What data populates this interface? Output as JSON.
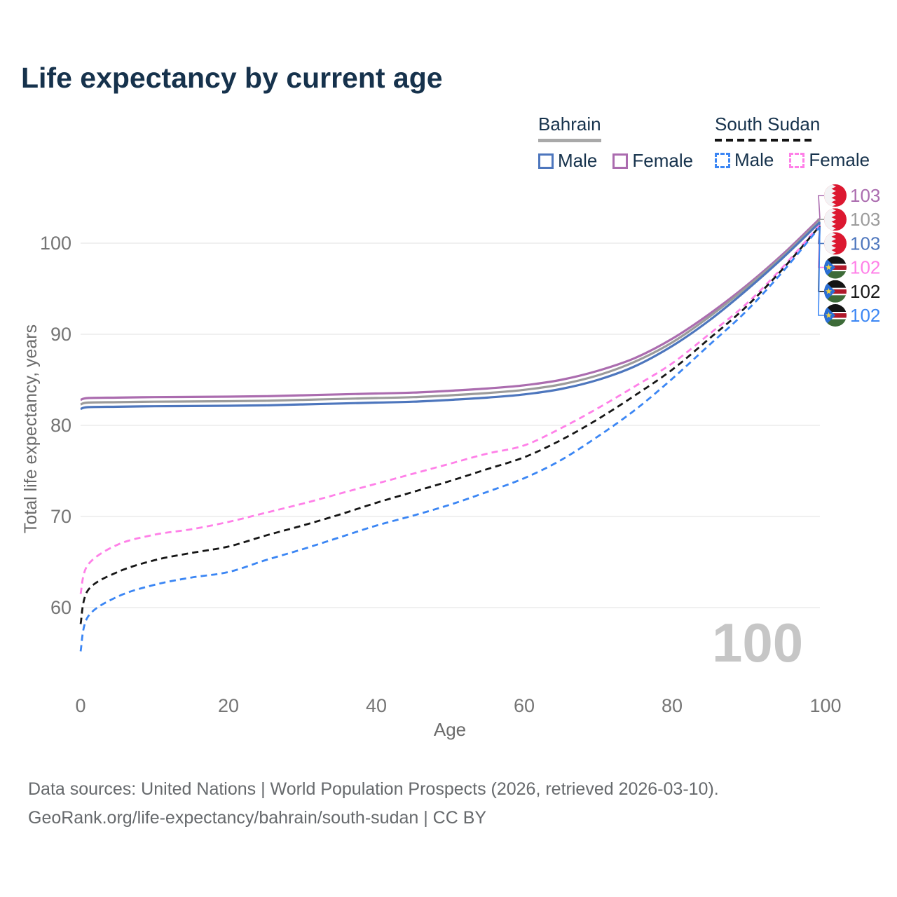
{
  "title": "Life expectancy by current age",
  "legend": {
    "groups": [
      {
        "country": "Bahrain",
        "underline_style": "solid",
        "underline_color": "#a9a9a9",
        "items": [
          {
            "label": "Male",
            "color": "#4d76bd",
            "dash": false
          },
          {
            "label": "Female",
            "color": "#ab6caf",
            "dash": false
          }
        ]
      },
      {
        "country": "South Sudan",
        "underline_style": "dashed",
        "underline_color": "#141414",
        "items": [
          {
            "label": "Male",
            "color": "#3b86f4",
            "dash": true
          },
          {
            "label": "Female",
            "color": "#ff80e8",
            "dash": true
          }
        ]
      }
    ]
  },
  "axes": {
    "y_title": "Total life expectancy, years",
    "x_title": "Age",
    "tick_color": "#757575",
    "gridline_color": "#e7e7e7"
  },
  "watermark_age": "100",
  "footer": {
    "sources_line": "Data sources: United Nations | World Population Prospects (2026, retrieved 2026-03-10).",
    "attribution_line": "GeoRank.org/life-expectancy/bahrain/south-sudan | CC BY"
  },
  "chart_data": {
    "type": "line",
    "title": "Life expectancy by current age",
    "xlabel": "Age",
    "ylabel": "Total life expectancy, years",
    "xlim": [
      0,
      100
    ],
    "ylim": [
      54,
      104
    ],
    "x_ticks": [
      0,
      20,
      40,
      60,
      80,
      100
    ],
    "y_ticks": [
      100,
      90,
      80,
      70,
      60
    ],
    "grid": "horizontal",
    "legend_position": "top-right",
    "series": [
      {
        "name": "Bahrain Female",
        "country": "Bahrain",
        "sex": "Female",
        "color": "#ab6caf",
        "line_style": "solid",
        "end_label": "103",
        "flag_icon": "bahrain-flag-icon",
        "points": [
          [
            0,
            82.8
          ],
          [
            1,
            83.0
          ],
          [
            5,
            83.05
          ],
          [
            10,
            83.1
          ],
          [
            15,
            83.12
          ],
          [
            20,
            83.15
          ],
          [
            25,
            83.2
          ],
          [
            30,
            83.3
          ],
          [
            35,
            83.4
          ],
          [
            40,
            83.5
          ],
          [
            45,
            83.6
          ],
          [
            50,
            83.8
          ],
          [
            55,
            84.05
          ],
          [
            60,
            84.4
          ],
          [
            65,
            85.0
          ],
          [
            70,
            86.0
          ],
          [
            75,
            87.4
          ],
          [
            80,
            89.5
          ],
          [
            85,
            92.2
          ],
          [
            90,
            95.3
          ],
          [
            95,
            98.8
          ],
          [
            100,
            102.7
          ]
        ]
      },
      {
        "name": "Bahrain Both sexes",
        "country": "Bahrain",
        "sex": "Both",
        "color": "#9b9b9b",
        "line_style": "solid",
        "end_label": "103",
        "flag_icon": "bahrain-flag-icon",
        "points": [
          [
            0,
            82.3
          ],
          [
            1,
            82.5
          ],
          [
            5,
            82.55
          ],
          [
            10,
            82.6
          ],
          [
            15,
            82.62
          ],
          [
            20,
            82.65
          ],
          [
            25,
            82.7
          ],
          [
            30,
            82.8
          ],
          [
            35,
            82.9
          ],
          [
            40,
            83.0
          ],
          [
            45,
            83.1
          ],
          [
            50,
            83.3
          ],
          [
            55,
            83.55
          ],
          [
            60,
            83.9
          ],
          [
            65,
            84.5
          ],
          [
            70,
            85.5
          ],
          [
            75,
            87.0
          ],
          [
            80,
            89.1
          ],
          [
            85,
            91.9
          ],
          [
            90,
            95.1
          ],
          [
            95,
            98.6
          ],
          [
            100,
            102.5
          ]
        ]
      },
      {
        "name": "Bahrain Male",
        "country": "Bahrain",
        "sex": "Male",
        "color": "#4d76bd",
        "line_style": "solid",
        "end_label": "103",
        "flag_icon": "bahrain-flag-icon",
        "points": [
          [
            0,
            81.8
          ],
          [
            1,
            82.0
          ],
          [
            5,
            82.05
          ],
          [
            10,
            82.1
          ],
          [
            15,
            82.12
          ],
          [
            20,
            82.15
          ],
          [
            25,
            82.2
          ],
          [
            30,
            82.3
          ],
          [
            35,
            82.4
          ],
          [
            40,
            82.5
          ],
          [
            45,
            82.6
          ],
          [
            50,
            82.8
          ],
          [
            55,
            83.05
          ],
          [
            60,
            83.4
          ],
          [
            65,
            84.0
          ],
          [
            70,
            85.0
          ],
          [
            75,
            86.5
          ],
          [
            80,
            88.7
          ],
          [
            85,
            91.5
          ],
          [
            90,
            94.8
          ],
          [
            95,
            98.4
          ],
          [
            100,
            102.3
          ]
        ]
      },
      {
        "name": "South Sudan Female",
        "country": "South Sudan",
        "sex": "Female",
        "color": "#ff80e8",
        "line_style": "dashed",
        "end_label": "102",
        "flag_icon": "south-sudan-flag-icon",
        "points": [
          [
            0,
            61.5
          ],
          [
            1,
            64.7
          ],
          [
            5,
            66.9
          ],
          [
            10,
            68.0
          ],
          [
            15,
            68.6
          ],
          [
            20,
            69.4
          ],
          [
            25,
            70.4
          ],
          [
            30,
            71.4
          ],
          [
            35,
            72.5
          ],
          [
            40,
            73.6
          ],
          [
            45,
            74.7
          ],
          [
            50,
            75.8
          ],
          [
            55,
            76.9
          ],
          [
            60,
            77.8
          ],
          [
            65,
            79.7
          ],
          [
            70,
            81.9
          ],
          [
            75,
            84.3
          ],
          [
            80,
            86.8
          ],
          [
            85,
            90.0
          ],
          [
            90,
            93.3
          ],
          [
            95,
            97.4
          ],
          [
            100,
            102.0
          ]
        ]
      },
      {
        "name": "South Sudan Both sexes",
        "country": "South Sudan",
        "sex": "Both",
        "color": "#161616",
        "line_style": "dashed",
        "end_label": "102",
        "flag_icon": "south-sudan-flag-icon",
        "points": [
          [
            0,
            58.2
          ],
          [
            1,
            61.9
          ],
          [
            5,
            63.9
          ],
          [
            10,
            65.2
          ],
          [
            15,
            66.0
          ],
          [
            20,
            66.7
          ],
          [
            25,
            67.9
          ],
          [
            30,
            69.0
          ],
          [
            35,
            70.2
          ],
          [
            40,
            71.5
          ],
          [
            45,
            72.7
          ],
          [
            50,
            73.9
          ],
          [
            55,
            75.2
          ],
          [
            60,
            76.5
          ],
          [
            65,
            78.4
          ],
          [
            70,
            80.7
          ],
          [
            75,
            83.3
          ],
          [
            80,
            86.1
          ],
          [
            85,
            89.5
          ],
          [
            90,
            93.0
          ],
          [
            95,
            97.2
          ],
          [
            100,
            101.9
          ]
        ]
      },
      {
        "name": "South Sudan Male",
        "country": "South Sudan",
        "sex": "Male",
        "color": "#3b86f4",
        "line_style": "dashed",
        "end_label": "102",
        "flag_icon": "south-sudan-flag-icon",
        "points": [
          [
            0,
            55.2
          ],
          [
            1,
            59.0
          ],
          [
            5,
            61.2
          ],
          [
            10,
            62.5
          ],
          [
            15,
            63.3
          ],
          [
            20,
            63.9
          ],
          [
            25,
            65.2
          ],
          [
            30,
            66.4
          ],
          [
            35,
            67.7
          ],
          [
            40,
            69.0
          ],
          [
            45,
            70.1
          ],
          [
            50,
            71.3
          ],
          [
            55,
            72.7
          ],
          [
            60,
            74.2
          ],
          [
            65,
            76.2
          ],
          [
            70,
            78.8
          ],
          [
            75,
            81.7
          ],
          [
            80,
            85.1
          ],
          [
            85,
            88.8
          ],
          [
            90,
            92.5
          ],
          [
            95,
            96.9
          ],
          [
            100,
            101.8
          ]
        ]
      }
    ]
  }
}
